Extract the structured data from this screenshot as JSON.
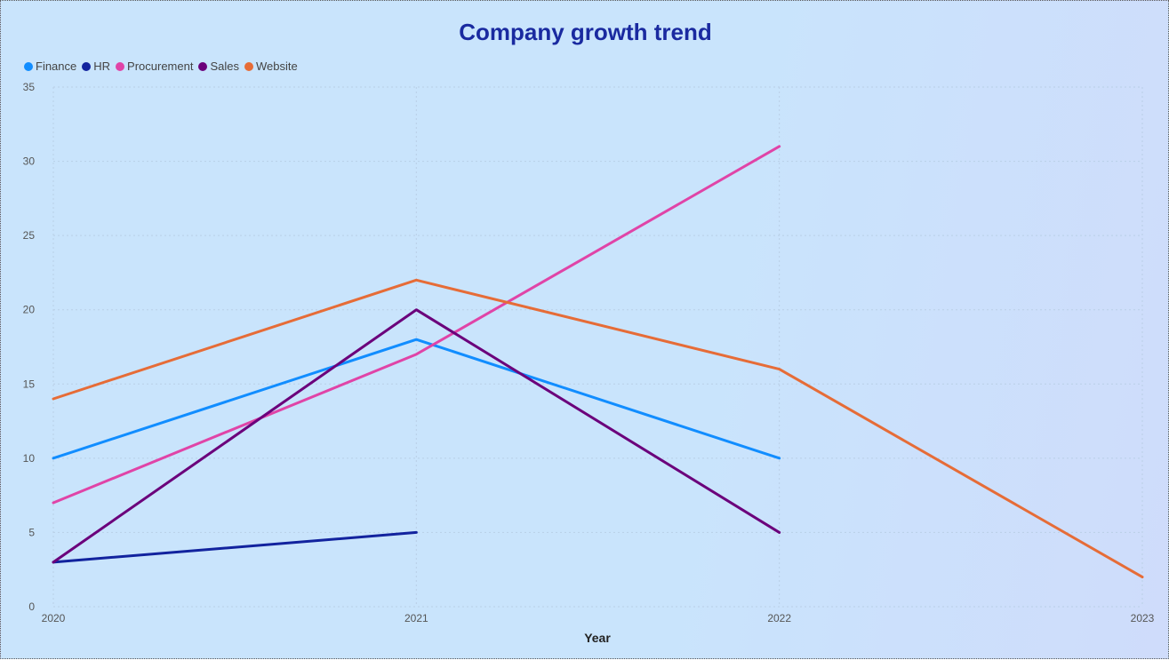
{
  "chart_data": {
    "type": "line",
    "title": "Company growth trend",
    "xlabel": "Year",
    "ylabel": "",
    "x": [
      "2020",
      "2021",
      "2022",
      "2023"
    ],
    "ylim": [
      0,
      35
    ],
    "yticks": [
      0,
      5,
      10,
      15,
      20,
      25,
      30,
      35
    ],
    "grid": true,
    "legend_position": "top-left",
    "series": [
      {
        "name": "Finance",
        "color": "#118dff",
        "values": [
          10,
          18,
          10,
          null
        ]
      },
      {
        "name": "HR",
        "color": "#12239e",
        "values": [
          3,
          5,
          null,
          null
        ]
      },
      {
        "name": "Procurement",
        "color": "#e044a7",
        "values": [
          7,
          17,
          31,
          null
        ]
      },
      {
        "name": "Sales",
        "color": "#6b007b",
        "values": [
          3,
          20,
          5,
          null
        ]
      },
      {
        "name": "Website",
        "color": "#e66c37",
        "values": [
          14,
          22,
          16,
          2
        ]
      }
    ]
  }
}
